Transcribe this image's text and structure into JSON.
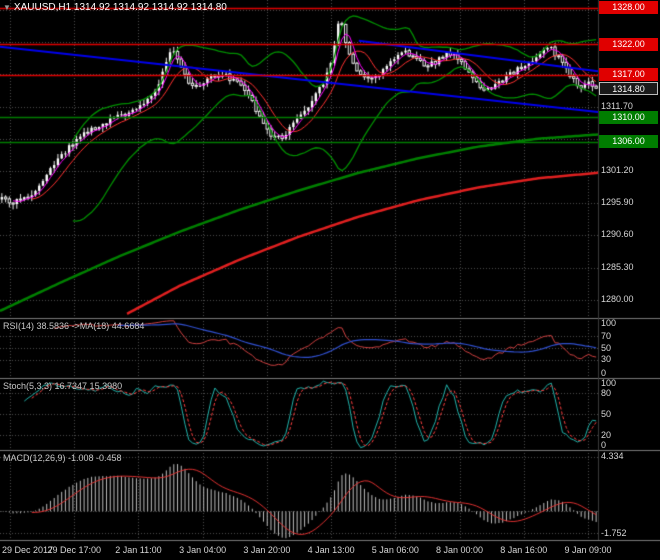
{
  "main": {
    "marker": "▼",
    "title": "XAUUSD,H1  1314.92 1314.92 1314.92 1314.80"
  },
  "time_axis": {
    "labels": [
      "29 Dec 2017",
      "29 Dec 17:00",
      "2 Jan 11:00",
      "3 Jan 04:00",
      "3 Jan 20:00",
      "4 Jan 13:00",
      "5 Jan 06:00",
      "8 Jan 00:00",
      "8 Jan 16:00",
      "9 Jan 09:00"
    ]
  },
  "colors": {
    "bg": "#000000",
    "grid": "#4e4e4e",
    "bull": "#ffffff",
    "bear": "#000000",
    "outline": "#e8e8e8",
    "bollinger": "#009000",
    "ma_green": "#008000",
    "ma_red": "#e02020",
    "fast_red": "#ff3030",
    "fast_magenta": "#ff00ff",
    "hline_red": "#e00000",
    "hline_green": "#007d00",
    "trend_blue": "#0000ee",
    "rsi_line": "#d04040",
    "rsi_ma": "#3050d0",
    "stoch_k": "#20b2aa",
    "stoch_d": "#ff4040",
    "macd_hist": "#c0c0c0",
    "macd_signal": "#e03030",
    "axis_text": "#d6d6d6",
    "divider": "#7a7a7a",
    "current_tag_bg": "#1a1a1a",
    "current_tag_border": "#bbbbbb"
  },
  "chart_data": [
    {
      "id": "price",
      "type": "candlestick",
      "symbol": "XAUUSD",
      "timeframe": "H1",
      "num_candles": 160,
      "price_range": [
        1277.2,
        1329.3
      ],
      "y_grid_lines": [
        1327.7,
        1322.4,
        1317.1,
        1311.7,
        1306.4,
        1301.2,
        1295.9,
        1290.6,
        1285.3,
        1280.0
      ],
      "y_grid": [
        {
          "price": 1311.7,
          "label": "1311.70"
        },
        {
          "price": 1301.2,
          "label": "1301.20"
        },
        {
          "price": 1295.9,
          "label": "1295.90"
        },
        {
          "price": 1290.6,
          "label": "1290.60"
        },
        {
          "price": 1285.3,
          "label": "1285.30"
        },
        {
          "price": 1280.0,
          "label": "1280.00"
        }
      ],
      "horizontal_lines": [
        {
          "price": 1328.0,
          "label": "1328.00",
          "color": "#e00000"
        },
        {
          "price": 1322.0,
          "label": "1322.00",
          "color": "#e00000"
        },
        {
          "price": 1317.0,
          "label": "1317.00",
          "color": "#e00000"
        },
        {
          "price": 1310.0,
          "label": "1310.00",
          "color": "#007d00"
        },
        {
          "price": 1306.0,
          "label": "1306.00",
          "color": "#007d00"
        }
      ],
      "current_price": {
        "value": 1314.8,
        "label": "1314.80"
      },
      "trendlines": [
        {
          "x1": 0.0,
          "p1": 1321.6,
          "x2": 1.0,
          "p2": 1310.9
        },
        {
          "x1": 0.6,
          "p1": 1322.6,
          "x2": 1.0,
          "p2": 1317.6
        }
      ],
      "bollinger": {
        "period": 20,
        "deviation": 2
      },
      "fast_ma": {
        "red_period": 9,
        "magenta_period": 4
      },
      "price_path": [
        [
          0,
          1296.6
        ],
        [
          0.02,
          1296.1
        ],
        [
          0.04,
          1296.9
        ],
        [
          0.06,
          1298.3
        ],
        [
          0.08,
          1301.2
        ],
        [
          0.1,
          1303.8
        ],
        [
          0.12,
          1305.8
        ],
        [
          0.14,
          1307.4
        ],
        [
          0.16,
          1308.3
        ],
        [
          0.18,
          1309.3
        ],
        [
          0.2,
          1310.4
        ],
        [
          0.22,
          1311.2
        ],
        [
          0.24,
          1312.4
        ],
        [
          0.26,
          1314.6
        ],
        [
          0.275,
          1318.2
        ],
        [
          0.287,
          1321.4
        ],
        [
          0.297,
          1319.6
        ],
        [
          0.31,
          1316.2
        ],
        [
          0.325,
          1314.8
        ],
        [
          0.34,
          1316.0
        ],
        [
          0.355,
          1316.9
        ],
        [
          0.37,
          1317.1
        ],
        [
          0.385,
          1316.4
        ],
        [
          0.4,
          1315.4
        ],
        [
          0.42,
          1312.8
        ],
        [
          0.44,
          1308.9
        ],
        [
          0.46,
          1306.5
        ],
        [
          0.475,
          1306.9
        ],
        [
          0.49,
          1308.8
        ],
        [
          0.51,
          1311.2
        ],
        [
          0.53,
          1313.8
        ],
        [
          0.55,
          1317.5
        ],
        [
          0.562,
          1323.0
        ],
        [
          0.569,
          1327.2
        ],
        [
          0.578,
          1322.4
        ],
        [
          0.59,
          1318.8
        ],
        [
          0.605,
          1316.6
        ],
        [
          0.62,
          1315.9
        ],
        [
          0.64,
          1317.4
        ],
        [
          0.66,
          1319.6
        ],
        [
          0.675,
          1320.9
        ],
        [
          0.69,
          1320.1
        ],
        [
          0.71,
          1318.6
        ],
        [
          0.73,
          1319.1
        ],
        [
          0.75,
          1320.7
        ],
        [
          0.765,
          1320.1
        ],
        [
          0.78,
          1318.2
        ],
        [
          0.8,
          1315.7
        ],
        [
          0.815,
          1314.3
        ],
        [
          0.83,
          1315.1
        ],
        [
          0.85,
          1316.6
        ],
        [
          0.87,
          1318.2
        ],
        [
          0.89,
          1319.3
        ],
        [
          0.91,
          1320.8
        ],
        [
          0.925,
          1321.2
        ],
        [
          0.94,
          1319.4
        ],
        [
          0.955,
          1317.2
        ],
        [
          0.97,
          1315.0
        ],
        [
          0.985,
          1315.6
        ],
        [
          1,
          1314.8
        ]
      ],
      "ma_slow_green": [
        [
          0,
          1278.2
        ],
        [
          0.1,
          1282.8
        ],
        [
          0.2,
          1287.2
        ],
        [
          0.3,
          1291.2
        ],
        [
          0.4,
          1294.8
        ],
        [
          0.5,
          1298.0
        ],
        [
          0.6,
          1300.9
        ],
        [
          0.7,
          1303.3
        ],
        [
          0.8,
          1305.2
        ],
        [
          0.9,
          1306.5
        ],
        [
          1,
          1307.2
        ]
      ],
      "ma_slow_red": [
        [
          0.21,
          1277.6
        ],
        [
          0.3,
          1282.3
        ],
        [
          0.4,
          1286.6
        ],
        [
          0.5,
          1290.4
        ],
        [
          0.6,
          1293.7
        ],
        [
          0.7,
          1296.4
        ],
        [
          0.8,
          1298.5
        ],
        [
          0.9,
          1300.0
        ],
        [
          1,
          1300.9
        ]
      ]
    },
    {
      "id": "rsi",
      "type": "line",
      "label": "RSI(14) 38.5836  ->MA(18) 44.6684",
      "period": 14,
      "ma_period": 18,
      "value": 38.5836,
      "ma_value": 44.6684,
      "range": [
        0,
        100
      ],
      "levels": [
        70,
        50,
        30
      ],
      "scale": [
        {
          "v": 100,
          "t": "100"
        },
        {
          "v": 70,
          "t": "70"
        },
        {
          "v": 50,
          "t": "50"
        },
        {
          "v": 30,
          "t": "30"
        },
        {
          "v": 0,
          "t": "0"
        }
      ]
    },
    {
      "id": "stoch",
      "type": "line",
      "label": "Stoch(5,3,3) 16.7347 15.3980",
      "params": [
        5,
        3,
        3
      ],
      "value": 16.7347,
      "signal_value": 15.398,
      "range": [
        0,
        100
      ],
      "levels": [
        80,
        50,
        20
      ],
      "scale": [
        {
          "v": 100,
          "t": "100"
        },
        {
          "v": 80,
          "t": "80"
        },
        {
          "v": 50,
          "t": "50"
        },
        {
          "v": 20,
          "t": "20"
        },
        {
          "v": 0,
          "t": "0"
        }
      ]
    },
    {
      "id": "macd",
      "type": "histogram+line",
      "label": "MACD(12,26,9) -1.008 -0.458",
      "params": [
        12,
        26,
        9
      ],
      "value": -1.008,
      "signal_value": -0.458,
      "range": [
        -2.2,
        4.8
      ],
      "levels": [
        0
      ],
      "scale": [
        {
          "v": 4.334,
          "t": "4.334"
        },
        {
          "v": -1.752,
          "t": "-1.752"
        }
      ]
    }
  ]
}
